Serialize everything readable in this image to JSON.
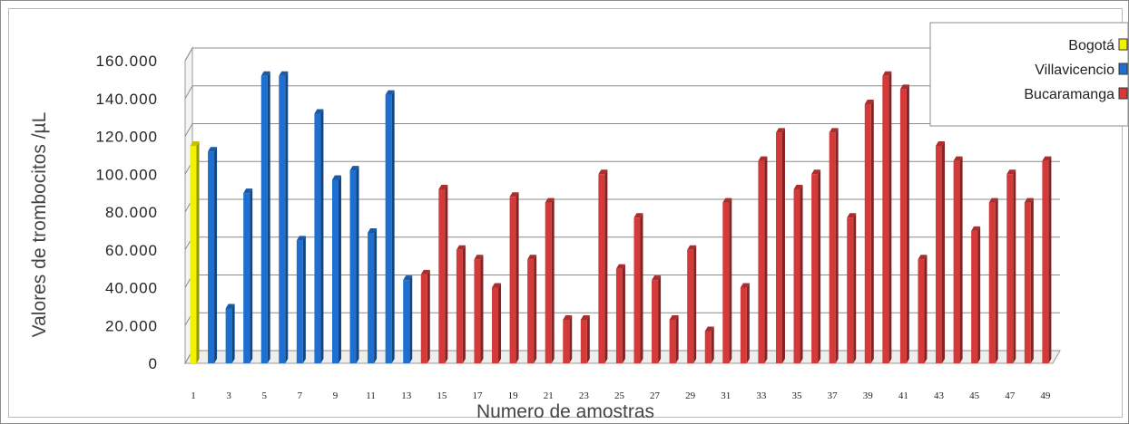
{
  "chart_data": {
    "type": "bar",
    "title": "",
    "xlabel": "Numero de amostras",
    "ylabel": "Valores de trombocitos /µL",
    "ylim": [
      0,
      160000
    ],
    "yticks": [
      "0",
      "20.000",
      "40.000",
      "60.000",
      "80.000",
      "100.000",
      "120.000",
      "140.000",
      "160.000"
    ],
    "xtick_labels": [
      "1",
      "3",
      "5",
      "7",
      "9",
      "11",
      "13",
      "15",
      "17",
      "19",
      "21",
      "23",
      "25",
      "27",
      "29",
      "31",
      "33",
      "35",
      "37",
      "39",
      "41",
      "43",
      "45",
      "47",
      "49"
    ],
    "grid": true,
    "legend_position": "top-right",
    "series": [
      {
        "name": "Bogotá",
        "color": "#f2f200",
        "x": [
          1
        ],
        "values": [
          115000
        ]
      },
      {
        "name": "Villavicencio",
        "color": "#1f6fd0",
        "x": [
          2,
          3,
          4,
          5,
          6,
          7,
          8,
          9,
          10,
          11,
          12,
          13
        ],
        "values": [
          112000,
          29000,
          90000,
          152000,
          152000,
          65000,
          132000,
          97000,
          102000,
          69000,
          142000,
          44000
        ]
      },
      {
        "name": "Bucaramanga",
        "color": "#d43a3a",
        "x": [
          14,
          15,
          16,
          17,
          18,
          19,
          20,
          21,
          22,
          23,
          24,
          25,
          26,
          27,
          28,
          29,
          30,
          31,
          32,
          33,
          34,
          35,
          36,
          37,
          38,
          39,
          40,
          41,
          42,
          43,
          44,
          45,
          46,
          47,
          48,
          49
        ],
        "values": [
          47000,
          92000,
          60000,
          55000,
          40000,
          88000,
          55000,
          85000,
          23000,
          23000,
          100000,
          50000,
          77000,
          44000,
          23000,
          60000,
          17000,
          85000,
          40000,
          107000,
          122000,
          92000,
          100000,
          122000,
          77000,
          137000,
          152000,
          145000,
          55000,
          115000,
          107000,
          70000,
          85000,
          100000,
          85000,
          107000
        ]
      }
    ]
  }
}
